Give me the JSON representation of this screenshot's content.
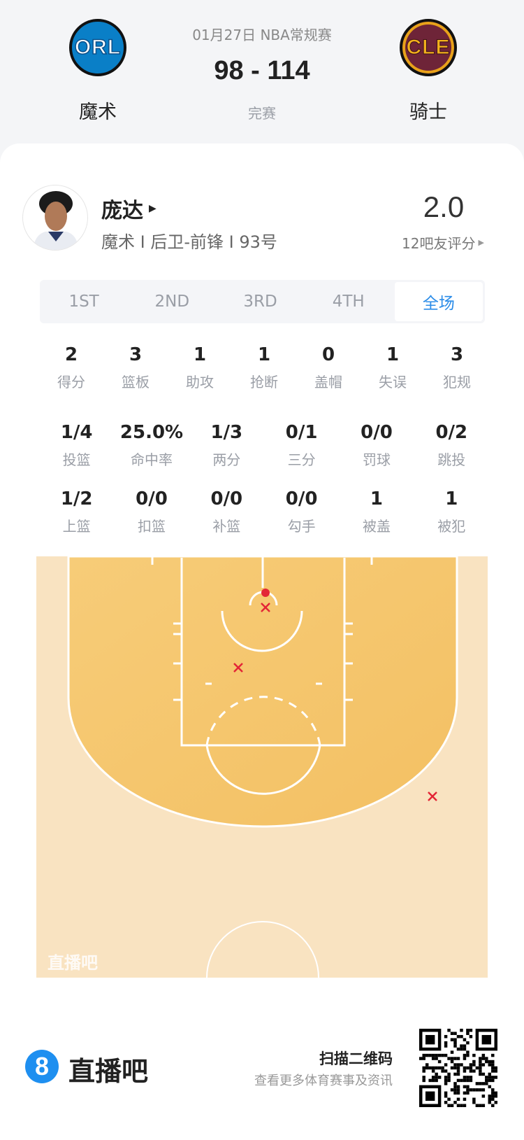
{
  "match": {
    "date_league": "01月27日 NBA常规赛",
    "score": "98 - 114",
    "status": "完赛",
    "home": {
      "abbr": "ORL",
      "name": "魔术"
    },
    "away": {
      "abbr": "CLE",
      "name": "骑士"
    }
  },
  "player": {
    "name": "庞达",
    "info": "魔术 I 后卫-前锋 I 93号",
    "rating": "2.0",
    "rating_label": "12吧友评分"
  },
  "tabs": [
    {
      "label": "1ST"
    },
    {
      "label": "2ND"
    },
    {
      "label": "3RD"
    },
    {
      "label": "4TH"
    },
    {
      "label": "全场",
      "active": true
    }
  ],
  "stats_row1": [
    {
      "v": "2",
      "l": "得分"
    },
    {
      "v": "3",
      "l": "篮板"
    },
    {
      "v": "1",
      "l": "助攻"
    },
    {
      "v": "1",
      "l": "抢断"
    },
    {
      "v": "0",
      "l": "盖帽"
    },
    {
      "v": "1",
      "l": "失误"
    },
    {
      "v": "3",
      "l": "犯规"
    }
  ],
  "stats_row2": [
    {
      "v": "1/4",
      "l": "投篮"
    },
    {
      "v": "25.0%",
      "l": "命中率"
    },
    {
      "v": "1/3",
      "l": "两分"
    },
    {
      "v": "0/1",
      "l": "三分"
    },
    {
      "v": "0/0",
      "l": "罚球"
    },
    {
      "v": "0/2",
      "l": "跳投"
    }
  ],
  "stats_row3": [
    {
      "v": "1/2",
      "l": "上篮"
    },
    {
      "v": "0/0",
      "l": "扣篮"
    },
    {
      "v": "0/0",
      "l": "补篮"
    },
    {
      "v": "0/0",
      "l": "勾手"
    },
    {
      "v": "1",
      "l": "被盖"
    },
    {
      "v": "1",
      "l": "被犯"
    }
  ],
  "shot_chart": {
    "watermark": "直播吧",
    "made_color": "#e32636",
    "missed_color": "#e32636",
    "shots": [
      {
        "result": "made",
        "zone": "rim"
      },
      {
        "result": "missed",
        "zone": "rim"
      },
      {
        "result": "missed",
        "zone": "paint"
      },
      {
        "result": "missed",
        "zone": "right-wing-three"
      }
    ]
  },
  "footer": {
    "brand": "直播吧",
    "brand_digit": "8",
    "scan_title": "扫描二维码",
    "scan_sub": "查看更多体育赛事及资讯",
    "accent": "#1e8ff0"
  }
}
